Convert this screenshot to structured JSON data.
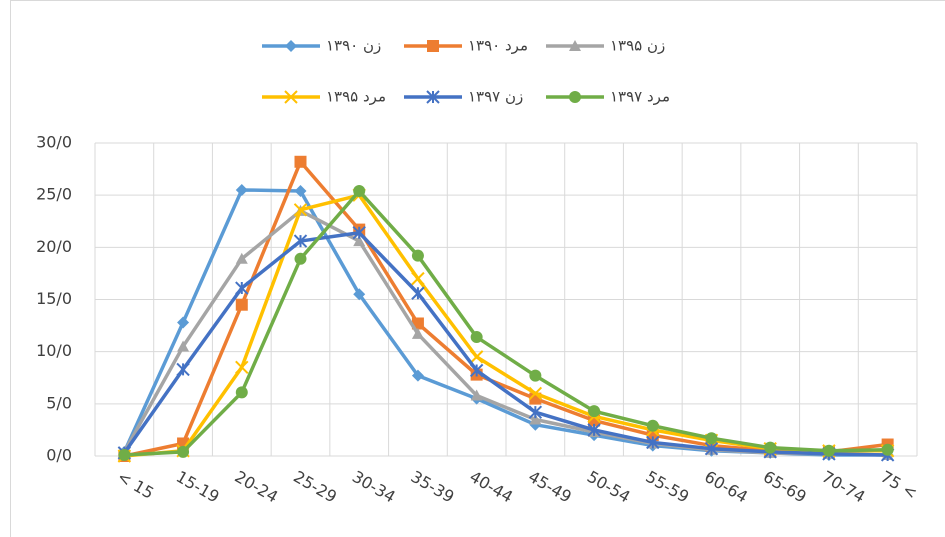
{
  "chart_data": {
    "type": "line",
    "categories": [
      "< 15",
      "15-19",
      "20-24",
      "25-29",
      "30-34",
      "35-39",
      "40-44",
      "45-49",
      "50-54",
      "55-59",
      "60-64",
      "65-69",
      "70-74",
      "75 <"
    ],
    "series": [
      {
        "name": "زن ۱۳۹۰",
        "color": "#5b9bd5",
        "marker": "diamond",
        "values": [
          0.4,
          12.8,
          25.5,
          25.4,
          15.5,
          7.7,
          5.5,
          3.0,
          2.0,
          1.0,
          0.5,
          0.3,
          0.1,
          0.1
        ]
      },
      {
        "name": "مرد ۱۳۹۰",
        "color": "#ed7d31",
        "marker": "square",
        "values": [
          0,
          1.2,
          14.5,
          28.2,
          21.7,
          12.7,
          7.8,
          5.5,
          3.4,
          2.0,
          1.0,
          0.5,
          0.4,
          1.1
        ]
      },
      {
        "name": "زن ۱۳۹۵",
        "color": "#a5a5a5",
        "marker": "triangle",
        "values": [
          0.4,
          10.5,
          18.9,
          23.5,
          20.6,
          11.7,
          5.8,
          3.5,
          2.3,
          1.2,
          0.6,
          0.3,
          0.2,
          0.1
        ]
      },
      {
        "name": "مرد ۱۳۹۵",
        "color": "#ffc000",
        "marker": "x",
        "values": [
          0,
          0.5,
          8.5,
          23.6,
          25.0,
          17.0,
          9.5,
          6.0,
          3.8,
          2.5,
          1.5,
          0.7,
          0.5,
          0.5
        ]
      },
      {
        "name": "زن ۱۳۹۷",
        "color": "#4472c4",
        "marker": "star",
        "values": [
          0.3,
          8.3,
          16.1,
          20.6,
          21.4,
          15.6,
          8.2,
          4.2,
          2.5,
          1.3,
          0.7,
          0.4,
          0.2,
          0.1
        ]
      },
      {
        "name": "مرد ۱۳۹۷",
        "color": "#70ad47",
        "marker": "circle",
        "values": [
          0.1,
          0.4,
          6.1,
          18.9,
          25.4,
          19.2,
          11.4,
          7.7,
          4.3,
          2.9,
          1.7,
          0.8,
          0.5,
          0.6
        ]
      }
    ],
    "ylim": [
      0,
      30
    ],
    "yticks": [
      {
        "value": 0,
        "label": "0/0"
      },
      {
        "value": 5,
        "label": "5/0"
      },
      {
        "value": 10,
        "label": "10/0"
      },
      {
        "value": 15,
        "label": "15/0"
      },
      {
        "value": 20,
        "label": "20/0"
      },
      {
        "value": 25,
        "label": "25/0"
      },
      {
        "value": 30,
        "label": "30/0"
      }
    ],
    "grid": true
  }
}
